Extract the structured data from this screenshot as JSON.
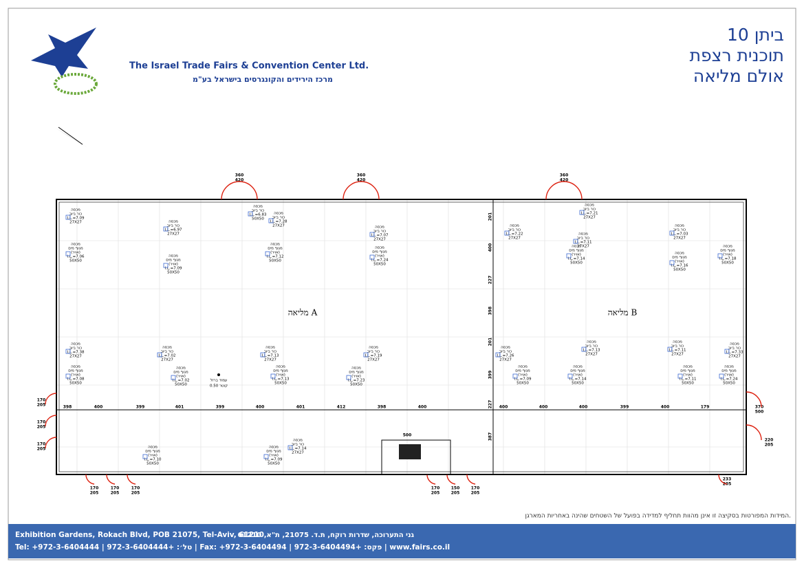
{
  "header": {
    "title_lines": [
      "ביתן 10",
      "תוכנית רצפת",
      "אולם מליאה"
    ],
    "company_en": "The Israel Trade Fairs & Convention Center Ltd.",
    "company_he": "מרכז הירידים והקונגרסים בישראל בע\"מ"
  },
  "plan": {
    "halls": [
      "מליאה A",
      "מליאה B"
    ],
    "column_dims": [
      "398",
      "400",
      "399",
      "401",
      "399",
      "400",
      "401",
      "412",
      "398",
      "400",
      "400",
      "400",
      "400",
      "399",
      "400",
      "179"
    ],
    "row_dims": [
      "201",
      "400",
      "227",
      "398",
      "201",
      "399",
      "227",
      "387"
    ],
    "doors": [
      {
        "top": "360",
        "bottom": "420"
      },
      {
        "top": "360",
        "bottom": "420"
      },
      {
        "top": "360",
        "bottom": "420"
      },
      {
        "top": "170",
        "bottom": "205"
      },
      {
        "top": "170",
        "bottom": "205"
      },
      {
        "top": "170",
        "bottom": "205"
      },
      {
        "top": "170",
        "bottom": "205"
      },
      {
        "top": "170",
        "bottom": "205"
      },
      {
        "top": "170",
        "bottom": "205"
      },
      {
        "top": "170",
        "bottom": "205"
      },
      {
        "top": "150",
        "bottom": "205"
      },
      {
        "top": "170",
        "bottom": "205"
      },
      {
        "top": "370",
        "bottom": "500"
      },
      {
        "top": "220",
        "bottom": "205"
      },
      {
        "top": "233",
        "bottom": "205"
      }
    ],
    "corridor_dim": "500",
    "column_note": [
      "עמוד ברזל",
      "קוטר 0.50"
    ],
    "boxes": [
      {
        "lines": [
          "מכסה",
          "כור ביוב",
          "I.L.=7.09",
          "27X27"
        ]
      },
      {
        "lines": [
          "מכסה",
          "מגוף מים",
          "(אויר)",
          "I.L.=7.06",
          "50X50"
        ]
      },
      {
        "lines": [
          "מכסה",
          "כור ביוב",
          "I.L.=6.97",
          "27X27"
        ]
      },
      {
        "lines": [
          "מכסה",
          "מגוף מים",
          "(אויר)",
          "I.L.=7.09",
          "50X50"
        ]
      },
      {
        "lines": [
          "מכסה",
          "כור ביוב",
          "I.L.=6.83",
          "50X50"
        ]
      },
      {
        "lines": [
          "מכסה",
          "כור ביוב",
          "I.L.=7.28",
          "27X27"
        ]
      },
      {
        "lines": [
          "מכסה",
          "מגוף מים",
          "(אויר)",
          "I.L.=7.12",
          "50X50"
        ]
      },
      {
        "lines": [
          "מכסה",
          "כור ביוב",
          "I.L.=7.07",
          "27X27"
        ]
      },
      {
        "lines": [
          "מכסה",
          "מגוף מים",
          "(אויר)",
          "I.L.=7.24",
          "50X50"
        ]
      },
      {
        "lines": [
          "מכסה",
          "כור ביוב",
          "I.L.=7.22",
          "27X27"
        ]
      },
      {
        "lines": [
          "מכסה",
          "כור ביוב",
          "I.L.=7.21",
          "27X27"
        ]
      },
      {
        "lines": [
          "מכסה",
          "כור ביוב",
          "I.L.=7.11",
          "27X27"
        ]
      },
      {
        "lines": [
          "מכסה",
          "מגוף מים",
          "(אויר)",
          "I.L.=7.14",
          "50X50"
        ]
      },
      {
        "lines": [
          "מכסה",
          "כור ביוב",
          "I.L.=7.03",
          "27X27"
        ]
      },
      {
        "lines": [
          "מכסה",
          "מגוף מים",
          "(אויר)",
          "I.L.=7.16",
          "50X50"
        ]
      },
      {
        "lines": [
          "מכסה",
          "מגוף מים",
          "(אויר)",
          "I.L.=7.18",
          "50X50"
        ]
      },
      {
        "lines": [
          "מכסה",
          "כור ביוב",
          "I.L.=7.38",
          "27X27"
        ]
      },
      {
        "lines": [
          "מכסה",
          "מגוף מים",
          "(אויר)",
          "I.L.=7.08",
          "50X50"
        ]
      },
      {
        "lines": [
          "מכסה",
          "כור ביוב",
          "I.L.=7.02",
          "27X27"
        ]
      },
      {
        "lines": [
          "מכסה",
          "מגוף מים",
          "(אויר)",
          "I.L.=7.02",
          "50X50"
        ]
      },
      {
        "lines": [
          "מכסה",
          "כור ביוב",
          "I.L.=7.13",
          "27X27"
        ]
      },
      {
        "lines": [
          "מכסה",
          "מגוף מים",
          "(אויר)",
          "I.L.=7.13",
          "50X50"
        ]
      },
      {
        "lines": [
          "מכסה",
          "כור ביוב",
          "I.L.=7.19",
          "27X27"
        ]
      },
      {
        "lines": [
          "מכסה",
          "מגוף מים",
          "(אויר)",
          "I.L.=7.23",
          "50X50"
        ]
      },
      {
        "lines": [
          "מכסה",
          "כור ביוב",
          "I.L.=7.26",
          "27X27"
        ]
      },
      {
        "lines": [
          "מכסה",
          "מגוף מים",
          "(אויר)",
          "I.L.=7.09",
          "50X50"
        ]
      },
      {
        "lines": [
          "מכסה",
          "כור ביוב",
          "I.L.=7.13",
          "27X27"
        ]
      },
      {
        "lines": [
          "מכסה",
          "מגוף מים",
          "(אויר)",
          "I.L.=7.14",
          "50X50"
        ]
      },
      {
        "lines": [
          "מכסה",
          "כור ביוב",
          "I.L.=7.11",
          "27X27"
        ]
      },
      {
        "lines": [
          "מכסה",
          "מגוף מים",
          "(אויר)",
          "I.L.=7.11",
          "50X50"
        ]
      },
      {
        "lines": [
          "מכסה",
          "כור ביוב",
          "I.L.=7.33",
          "27X27"
        ]
      },
      {
        "lines": [
          "מכסה",
          "מגוף מים",
          "(אויר)",
          "I.L.=7.24",
          "50X50"
        ]
      },
      {
        "lines": [
          "מכסה",
          "מגוף מים",
          "(אויר)",
          "I.L.=7.10",
          "50X50"
        ]
      },
      {
        "lines": [
          "מכסה",
          "מגוף מים",
          "(אויר)",
          "I.L.=7.09",
          "50X50"
        ]
      },
      {
        "lines": [
          "מכסה",
          "כור ביוב",
          "I.L.=7.14",
          "27X27"
        ]
      }
    ]
  },
  "footer": {
    "disclaimer": "המידות המפורטות בסקיצה זו אינן מהוות תחליף למדידה בפועל של השטחים שהינה באחריות המארגן.",
    "address_en": "Exhibition Gardens, Rokach Blvd, POB 21075, Tel-Aviv, 61210",
    "address_he": "גני התערוכה, שדרות רוקח, ת.ד. 21075, ת\"א, 61210",
    "contact": "Tel: +972-3-6404444 | טל׳: +972-3-6404444 | Fax: +972-3-6404494 | פקס: +972-3-6404494 | www.fairs.co.il"
  }
}
